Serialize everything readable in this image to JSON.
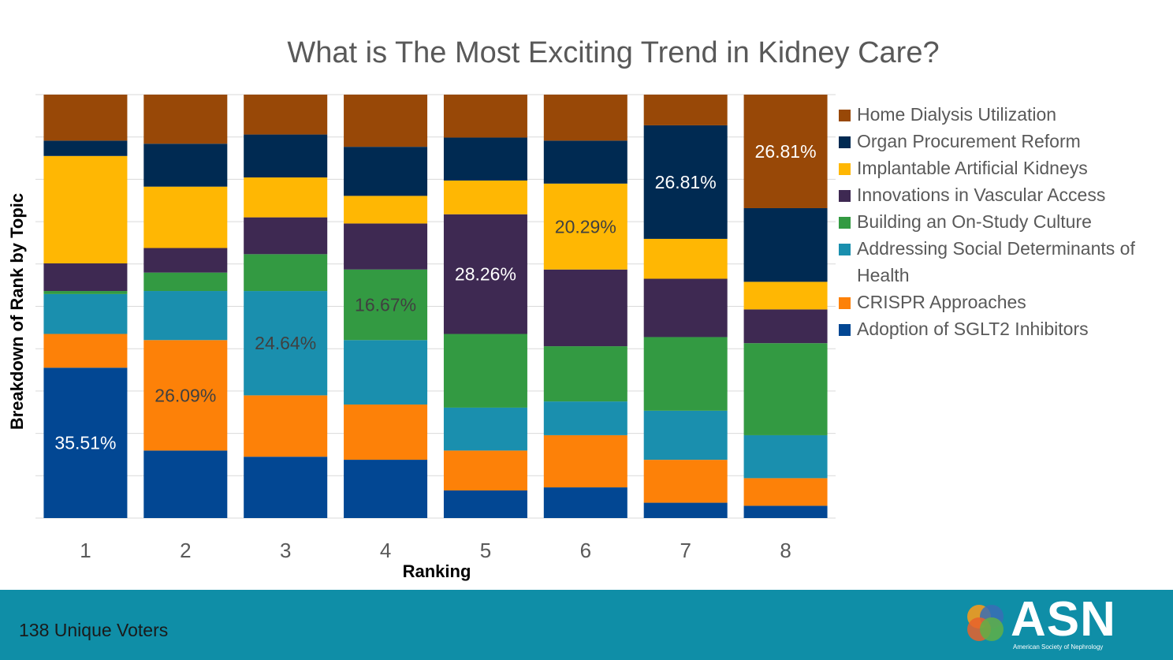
{
  "title": "What is The Most Exciting Trend in Kidney Care?",
  "footer": {
    "voters": "138 Unique Voters",
    "logo_text": "ASN",
    "logo_sub": "American Society of Nephrology"
  },
  "colors": {
    "Home Dialysis Utilization": "#984807",
    "Organ Procurement Reform": "#002a52",
    "Implantable Artificial Kidneys": "#ffb703",
    "Innovations in Vascular Access": "#3e2952",
    "Building an On-Study Culture": "#339a42",
    "Addressing Social Determinants of Health": "#1a8fae",
    "CRISPR Approaches": "#fd8108",
    "Adoption of SGLT2 Inhibitors": "#024793"
  },
  "legend_order": [
    "Home Dialysis Utilization",
    "Organ Procurement Reform",
    "Implantable Artificial Kidneys",
    "Innovations in Vascular Access",
    "Building an On-Study Culture",
    "Addressing Social Determinants of Health",
    "CRISPR Approaches",
    "Adoption of SGLT2 Inhibitors"
  ],
  "chart_data": {
    "type": "bar",
    "stacking": "percent",
    "title": "What is The Most Exciting Trend in Kidney Care?",
    "xlabel": "Ranking",
    "ylabel": "Breakdown of Rank by Topic",
    "categories": [
      "1",
      "2",
      "3",
      "4",
      "5",
      "6",
      "7",
      "8"
    ],
    "ylim": [
      0,
      100
    ],
    "grid": true,
    "legend_position": "right",
    "series": [
      {
        "name": "Adoption of SGLT2 Inhibitors",
        "values": [
          35.51,
          15.94,
          14.49,
          13.77,
          6.52,
          7.25,
          3.62,
          2.9
        ]
      },
      {
        "name": "CRISPR Approaches",
        "values": [
          7.97,
          26.09,
          14.49,
          13.04,
          9.42,
          12.32,
          10.14,
          6.52
        ]
      },
      {
        "name": "Addressing Social Determinants of Health",
        "values": [
          9.42,
          11.59,
          24.64,
          15.22,
          10.14,
          7.97,
          11.59,
          10.14
        ]
      },
      {
        "name": "Building an On-Study Culture",
        "values": [
          0.72,
          4.35,
          8.7,
          16.67,
          17.39,
          13.04,
          17.39,
          21.74
        ]
      },
      {
        "name": "Innovations in Vascular Access",
        "values": [
          6.52,
          5.8,
          8.7,
          10.87,
          28.26,
          18.12,
          13.77,
          7.97
        ]
      },
      {
        "name": "Implantable Artificial Kidneys",
        "values": [
          25.36,
          14.49,
          9.42,
          6.52,
          7.97,
          20.29,
          9.42,
          6.52
        ]
      },
      {
        "name": "Organ Procurement Reform",
        "values": [
          3.62,
          10.14,
          10.14,
          11.59,
          10.14,
          10.14,
          26.81,
          17.39
        ]
      },
      {
        "name": "Home Dialysis Utilization",
        "values": [
          10.87,
          11.59,
          9.42,
          12.32,
          10.14,
          10.87,
          7.25,
          26.81
        ]
      }
    ],
    "data_labels": [
      {
        "category": "1",
        "series": "Adoption of SGLT2 Inhibitors",
        "text": "35.51%",
        "color": "#ffffff"
      },
      {
        "category": "2",
        "series": "CRISPR Approaches",
        "text": "26.09%",
        "color": "#404040"
      },
      {
        "category": "3",
        "series": "Addressing Social Determinants of Health",
        "text": "24.64%",
        "color": "#404040"
      },
      {
        "category": "4",
        "series": "Building an On-Study Culture",
        "text": "16.67%",
        "color": "#404040"
      },
      {
        "category": "5",
        "series": "Innovations in Vascular Access",
        "text": "28.26%",
        "color": "#ffffff"
      },
      {
        "category": "6",
        "series": "Implantable Artificial Kidneys",
        "text": "20.29%",
        "color": "#404040"
      },
      {
        "category": "7",
        "series": "Organ Procurement Reform",
        "text": "26.81%",
        "color": "#ffffff"
      },
      {
        "category": "8",
        "series": "Home Dialysis Utilization",
        "text": "26.81%",
        "color": "#ffffff"
      }
    ]
  }
}
